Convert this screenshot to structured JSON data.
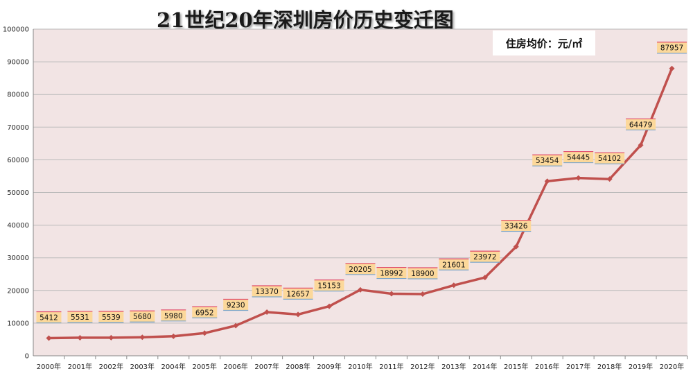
{
  "chart_data": {
    "type": "line",
    "title": "21世纪20年深圳房价历史变迁图",
    "unit_label": "住房均价：元/㎡",
    "categories": [
      "2000年",
      "2001年",
      "2002年",
      "2003年",
      "2004年",
      "2005年",
      "2006年",
      "2007年",
      "2008年",
      "2009年",
      "2010年",
      "2011年",
      "2012年",
      "2013年",
      "2014年",
      "2015年",
      "2016年",
      "2017年",
      "2018年",
      "2019年",
      "2020年"
    ],
    "series": [
      {
        "values": [
          5412,
          5531,
          5539,
          5680,
          5980,
          6952,
          9230,
          13370,
          12657,
          15153,
          20205,
          18992,
          18900,
          21601,
          23972,
          33426,
          53454,
          54445,
          54102,
          64479,
          87957
        ]
      }
    ],
    "ylim": [
      0,
      100000
    ],
    "yticks": [
      "0",
      "10000",
      "20000",
      "30000",
      "40000",
      "50000",
      "60000",
      "70000",
      "80000",
      "90000",
      "100000"
    ],
    "grid": true,
    "colors": {
      "plot_background": "#f2e4e4",
      "line": "#c0504d",
      "gridline": "#b9b9b9",
      "label_fill": "#fcd89a",
      "label_border_top": "#e04a6a",
      "label_border_bottom": "#7da6c9"
    }
  }
}
